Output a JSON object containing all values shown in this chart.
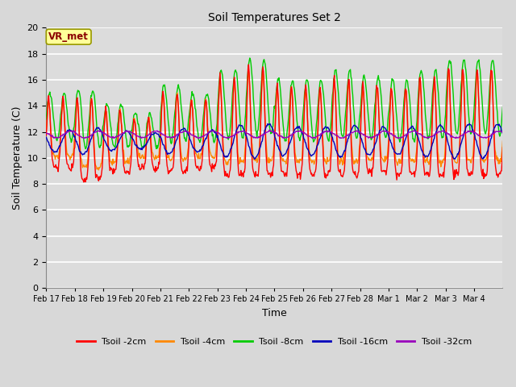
{
  "title": "Soil Temperatures Set 2",
  "xlabel": "Time",
  "ylabel": "Soil Temperature (C)",
  "ylim": [
    0,
    20
  ],
  "yticks": [
    0,
    2,
    4,
    6,
    8,
    10,
    12,
    14,
    16,
    18,
    20
  ],
  "background_color": "#d8d8d8",
  "plot_bg_color": "#dcdcdc",
  "grid_color": "#ffffff",
  "annotation_text": "VR_met",
  "annotation_bg": "#ffff99",
  "annotation_border": "#999900",
  "annotation_text_color": "#8B0000",
  "series_colors": {
    "Tsoil -2cm": "#ff0000",
    "Tsoil -4cm": "#ff8800",
    "Tsoil -8cm": "#00cc00",
    "Tsoil -16cm": "#0000bb",
    "Tsoil -32cm": "#9900bb"
  },
  "xtick_labels": [
    "Feb 17",
    "Feb 18",
    "Feb 19",
    "Feb 20",
    "Feb 21",
    "Feb 22",
    "Feb 23",
    "Feb 24",
    "Feb 25",
    "Feb 26",
    "Feb 27",
    "Feb 28",
    "Mar 1",
    "Mar 2",
    "Mar 3",
    "Mar 4"
  ],
  "figsize": [
    6.4,
    4.8
  ],
  "dpi": 100
}
